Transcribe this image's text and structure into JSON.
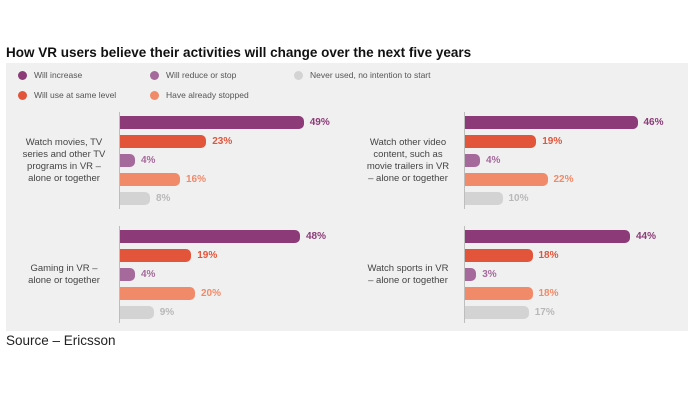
{
  "title": "How VR users believe their activities will change over the next five years",
  "source": "Source – Ericsson",
  "legend": [
    {
      "label": "Will increase",
      "color": "#8c3b78"
    },
    {
      "label": "Will use at same level",
      "color": "#e2553a"
    },
    {
      "label": "Will reduce or stop",
      "color": "#a56a9b"
    },
    {
      "label": "Have already stopped",
      "color": "#f08a68"
    },
    {
      "label": "Never used, no intention to start",
      "color": "#d3d3d3"
    }
  ],
  "chart_data": [
    {
      "type": "bar",
      "category": "Watch movies, TV series and other TV programs in VR – alone or together",
      "categories": [
        "Will increase",
        "Will use at same level",
        "Will reduce or stop",
        "Have already stopped",
        "Never used, no intention to start"
      ],
      "values": [
        49,
        23,
        4,
        16,
        8
      ],
      "labels": [
        "49%",
        "23%",
        "4%",
        "16%",
        "8%"
      ]
    },
    {
      "type": "bar",
      "category": "Watch other video content, such as movie trailers in VR – alone or together",
      "categories": [
        "Will increase",
        "Will use at same level",
        "Will reduce or stop",
        "Have already stopped",
        "Never used, no intention to start"
      ],
      "values": [
        46,
        19,
        4,
        22,
        10
      ],
      "labels": [
        "46%",
        "19%",
        "4%",
        "22%",
        "10%"
      ]
    },
    {
      "type": "bar",
      "category": "Gaming in VR – alone or together",
      "categories": [
        "Will increase",
        "Will use at same level",
        "Will reduce or stop",
        "Have already stopped",
        "Never used, no intention to start"
      ],
      "values": [
        48,
        19,
        4,
        20,
        9
      ],
      "labels": [
        "48%",
        "19%",
        "4%",
        "20%",
        "9%"
      ]
    },
    {
      "type": "bar",
      "category": "Watch sports in VR – alone or together",
      "categories": [
        "Will increase",
        "Will use at same level",
        "Will reduce or stop",
        "Have already stopped",
        "Never used, no intention to start"
      ],
      "values": [
        44,
        18,
        3,
        18,
        17
      ],
      "labels": [
        "44%",
        "18%",
        "3%",
        "18%",
        "17%"
      ]
    }
  ],
  "value_colors": [
    "#8c3b78",
    "#e2553a",
    "#a56a9b",
    "#f08a68",
    "#b8b8b8"
  ]
}
